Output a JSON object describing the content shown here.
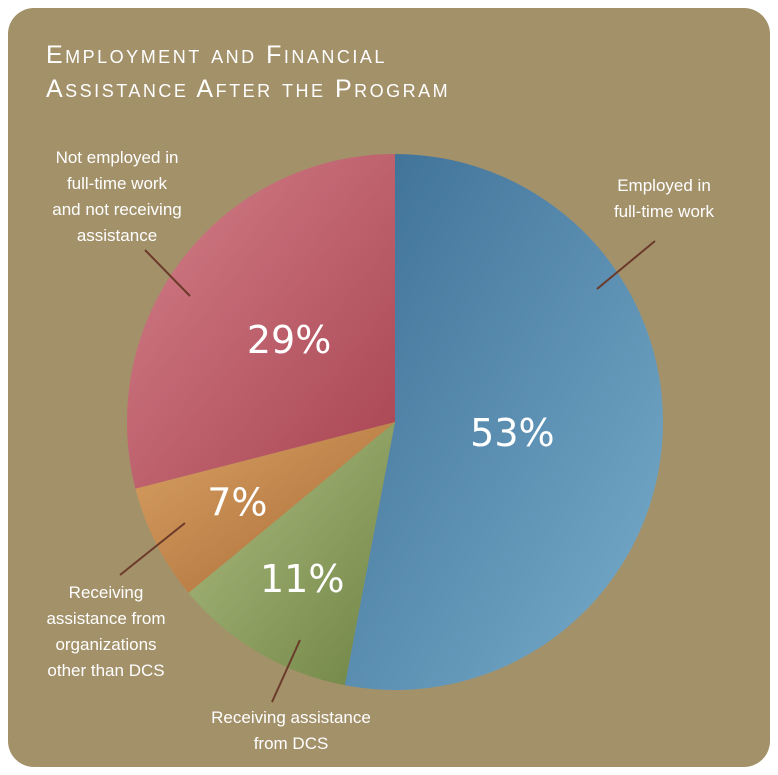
{
  "chart_data": {
    "type": "pie",
    "title_lines": [
      "Employment and Financial",
      "Assistance After the Program"
    ],
    "slices": [
      {
        "label_lines": [
          "Employed in",
          "full-time work"
        ],
        "value": 53,
        "value_label": "53%",
        "color": "#5a8fb2"
      },
      {
        "label_lines": [
          "Receiving assistance",
          "from DCS"
        ],
        "value": 11,
        "value_label": "11%",
        "color": "#8a9e5e"
      },
      {
        "label_lines": [
          "Receiving",
          "assistance from",
          "organizations",
          "other than DCS"
        ],
        "value": 7,
        "value_label": "7%",
        "color": "#c18548"
      },
      {
        "label_lines": [
          "Not employed in",
          "full-time work",
          "and not receiving",
          "assistance"
        ],
        "value": 29,
        "value_label": "29%",
        "color": "#b9545f"
      }
    ]
  },
  "colors": {
    "background": "#a3916a",
    "label_text": "#ffffff",
    "leader_line": "#6b3a2a"
  }
}
